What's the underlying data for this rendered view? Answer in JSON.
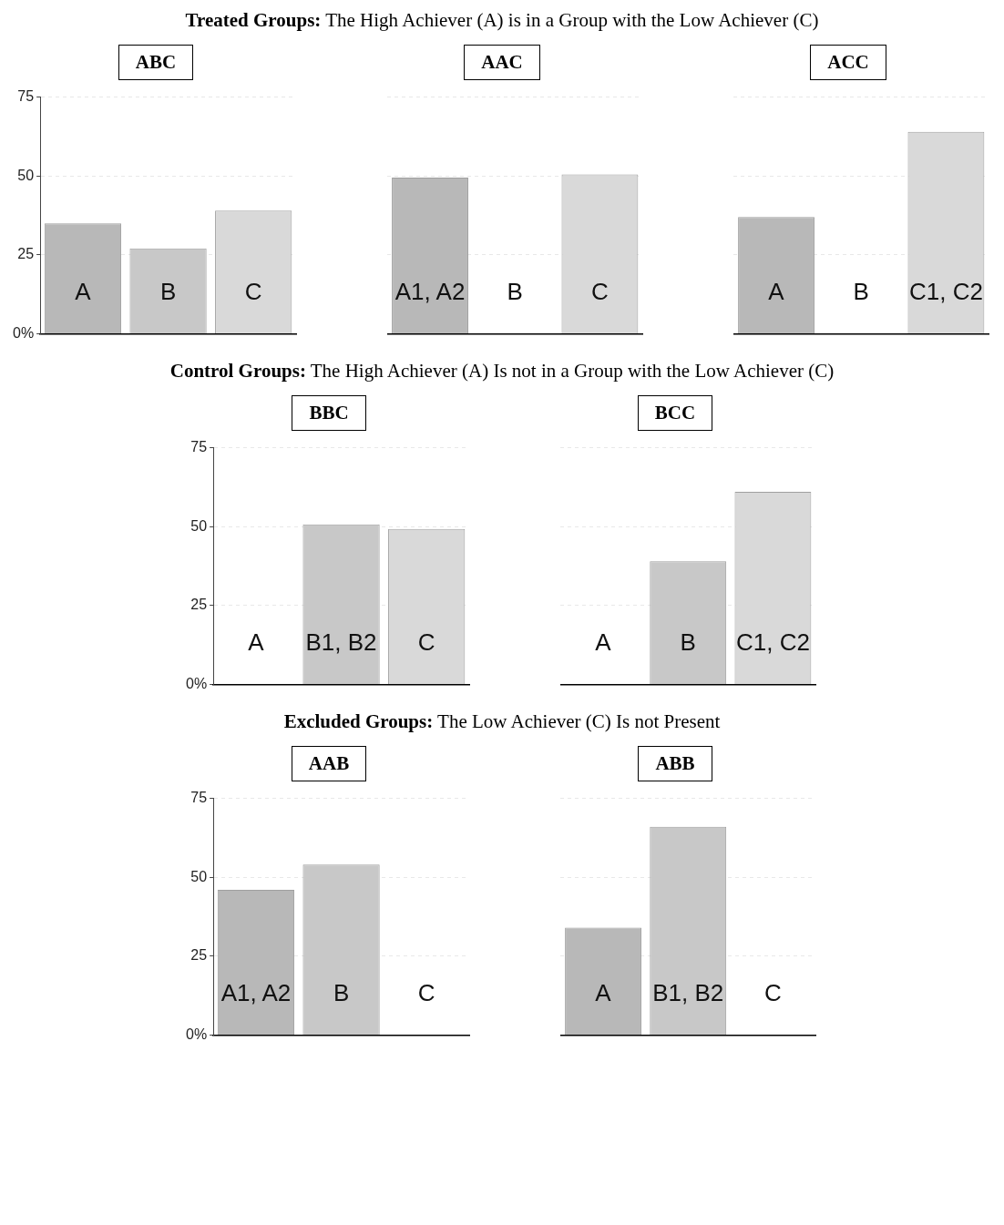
{
  "chart_data": [
    {
      "type": "bar",
      "title": "ABC",
      "annotations": [
        "Treated Groups: The High Achiever (A) is in a Group with the Low Achiever (C)"
      ],
      "categories": [
        "A",
        "B",
        "C"
      ],
      "values": [
        35,
        27,
        39
      ],
      "colors": [
        "#b8b8b8",
        "#c8c8c8",
        "#d9d9d9"
      ],
      "ylim": [
        0,
        75
      ],
      "yticks": [
        {
          "value": 0,
          "label": "0%"
        },
        25,
        50,
        75
      ],
      "grid": "y"
    },
    {
      "type": "bar",
      "title": "AAC",
      "categories": [
        "A1, A2",
        "B",
        "C"
      ],
      "values": [
        49.5,
        null,
        50.5
      ],
      "colors": [
        "#b8b8b8",
        "#c8c8c8",
        "#d9d9d9"
      ],
      "ylim": [
        0,
        75
      ],
      "yticks": [
        {
          "value": 0,
          "label": null
        },
        {
          "value": 25,
          "label": null
        },
        {
          "value": 50,
          "label": null
        },
        {
          "value": 75,
          "label": null
        }
      ],
      "grid": "y",
      "tick_labels": "x"
    },
    {
      "type": "bar",
      "title": "ACC",
      "categories": [
        "A",
        "B",
        "C1, C2"
      ],
      "values": [
        37,
        null,
        64
      ],
      "colors": [
        "#b8b8b8",
        "#c8c8c8",
        "#d9d9d9"
      ],
      "ylim": [
        0,
        75
      ],
      "yticks": [
        {
          "value": 0,
          "label": null
        },
        {
          "value": 25,
          "label": null
        },
        {
          "value": 50,
          "label": null
        },
        {
          "value": 75,
          "label": null
        }
      ],
      "grid": "y",
      "tick_labels": "x"
    },
    {
      "type": "bar",
      "title": "BBC",
      "annotations": [
        "Control Groups: The High Achiever (A) Is not in a Group with the Low Achiever (C)"
      ],
      "categories": [
        "A",
        "B1, B2",
        "C"
      ],
      "values": [
        null,
        50.7,
        49.3
      ],
      "colors": [
        "#b8b8b8",
        "#c8c8c8",
        "#d9d9d9"
      ],
      "ylim": [
        0,
        75
      ],
      "yticks": [
        {
          "value": 0,
          "label": "0%"
        },
        25,
        50,
        75
      ],
      "grid": "y"
    },
    {
      "type": "bar",
      "title": "BCC",
      "categories": [
        "A",
        "B",
        "C1, C2"
      ],
      "values": [
        null,
        39,
        61
      ],
      "colors": [
        "#b8b8b8",
        "#c8c8c8",
        "#d9d9d9"
      ],
      "ylim": [
        0,
        75
      ],
      "yticks": [
        {
          "value": 0,
          "label": null
        },
        {
          "value": 25,
          "label": null
        },
        {
          "value": 50,
          "label": null
        },
        {
          "value": 75,
          "label": null
        }
      ],
      "grid": "y",
      "tick_labels": "x"
    },
    {
      "type": "bar",
      "title": "AAB",
      "annotations": [
        "Excluded Groups: The Low Achiever (C) Is not Present"
      ],
      "categories": [
        "A1, A2",
        "B",
        "C"
      ],
      "values": [
        46,
        54,
        null
      ],
      "colors": [
        "#b8b8b8",
        "#c8c8c8",
        "#d9d9d9"
      ],
      "ylim": [
        0,
        75
      ],
      "yticks": [
        {
          "value": 0,
          "label": "0%"
        },
        25,
        50,
        75
      ],
      "grid": "y"
    },
    {
      "type": "bar",
      "title": "ABB",
      "categories": [
        "A",
        "B1, B2",
        "C"
      ],
      "values": [
        34,
        66,
        null
      ],
      "colors": [
        "#b8b8b8",
        "#c8c8c8",
        "#d9d9d9"
      ],
      "ylim": [
        0,
        75
      ],
      "yticks": [
        {
          "value": 0,
          "label": null
        },
        {
          "value": 25,
          "label": null
        },
        {
          "value": 50,
          "label": null
        },
        {
          "value": 75,
          "label": null
        }
      ],
      "grid": "y",
      "tick_labels": "x"
    }
  ]
}
